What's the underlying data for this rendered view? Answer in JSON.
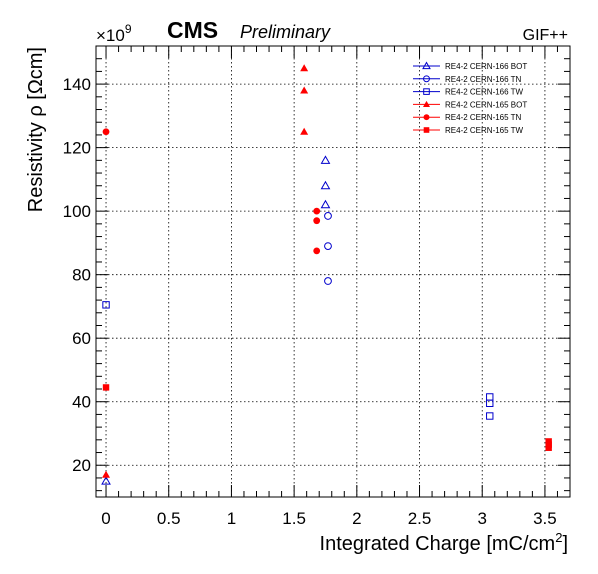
{
  "header": {
    "experiment": "CMS",
    "status": "Preliminary",
    "facility": "GIF++"
  },
  "chart_data": {
    "type": "scatter",
    "xlabel": "Integrated Charge [mC/cm",
    "xlabel_sup": "2",
    "xlabel_end": "]",
    "ylabel": "Resistivity ρ [Ωcm]",
    "y_multiplier": "×10",
    "y_multiplier_exp": "9",
    "xlim": [
      -0.08,
      3.7
    ],
    "ylim": [
      10,
      152
    ],
    "x_ticks": [
      0,
      0.5,
      1,
      1.5,
      2,
      2.5,
      3,
      3.5
    ],
    "x_tick_labels": [
      "0",
      "0.5",
      "1",
      "1.5",
      "2",
      "2.5",
      "3",
      "3.5"
    ],
    "y_ticks": [
      20,
      40,
      60,
      80,
      100,
      120,
      140
    ],
    "y_tick_labels": [
      "20",
      "40",
      "60",
      "80",
      "100",
      "120",
      "140"
    ],
    "grid": true,
    "legend_position": "top-right",
    "series": [
      {
        "name": "RE4-2 CERN-166 BOT",
        "color": "#0000cc",
        "marker": "triangle-open",
        "points": [
          [
            0.0,
            15
          ],
          [
            1.75,
            116
          ],
          [
            1.75,
            108
          ],
          [
            1.75,
            102
          ]
        ]
      },
      {
        "name": "RE4-2 CERN-166 TN",
        "color": "#0000cc",
        "marker": "circle-open",
        "points": [
          [
            1.77,
            98.5
          ],
          [
            1.77,
            89
          ],
          [
            1.77,
            78
          ]
        ]
      },
      {
        "name": "RE4-2 CERN-166 TW",
        "color": "#0000cc",
        "marker": "square-open",
        "points": [
          [
            0.0,
            70.5
          ],
          [
            3.06,
            41.5
          ],
          [
            3.06,
            39.5
          ],
          [
            3.06,
            35.5
          ]
        ]
      },
      {
        "name": "RE4-2 CERN-165 BOT",
        "color": "#ff0000",
        "marker": "triangle-filled",
        "points": [
          [
            0.0,
            17
          ],
          [
            1.58,
            145
          ],
          [
            1.58,
            138
          ],
          [
            1.58,
            125
          ]
        ]
      },
      {
        "name": "RE4-2 CERN-165 TN",
        "color": "#ff0000",
        "marker": "circle-filled",
        "points": [
          [
            0.0,
            125
          ],
          [
            1.68,
            100
          ],
          [
            1.68,
            97
          ],
          [
            1.68,
            87.5
          ]
        ]
      },
      {
        "name": "RE4-2 CERN-165 TW",
        "color": "#ff0000",
        "marker": "square-filled",
        "points": [
          [
            0.0,
            44.5
          ],
          [
            3.53,
            27.5
          ],
          [
            3.53,
            26.5
          ],
          [
            3.53,
            25.5
          ]
        ]
      }
    ]
  }
}
